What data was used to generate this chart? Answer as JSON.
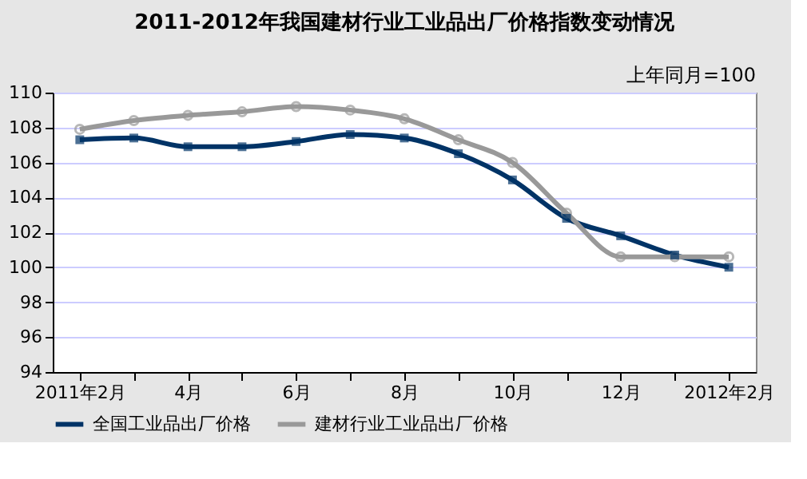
{
  "chart_data": {
    "type": "line",
    "title": "2011-2012年我国建材行业工业品出厂价格指数变动情况",
    "annotations": [
      "上年同月=100"
    ],
    "categories": [
      "2011年2月",
      null,
      "4月",
      null,
      "6月",
      null,
      "8月",
      null,
      "10月",
      null,
      "12月",
      null,
      "2012年2月"
    ],
    "series": [
      {
        "name": "全国工业品出厂价格",
        "color": "#003366",
        "marker": "square",
        "values": [
          107.3,
          107.4,
          106.9,
          106.9,
          107.2,
          107.6,
          107.4,
          106.5,
          105.0,
          102.8,
          101.8,
          100.7,
          100.0
        ]
      },
      {
        "name": "建材行业工业品出厂价格",
        "color": "#999999",
        "marker": "circle",
        "values": [
          107.9,
          108.4,
          108.7,
          108.9,
          109.2,
          109.0,
          108.5,
          107.3,
          106.0,
          103.1,
          100.6,
          100.6,
          100.6
        ]
      }
    ],
    "ylim": [
      94,
      110
    ],
    "yticks": [
      94,
      96,
      98,
      100,
      102,
      104,
      106,
      108,
      110
    ],
    "grid": "y",
    "legend": "bottom",
    "line_style": "solid"
  }
}
